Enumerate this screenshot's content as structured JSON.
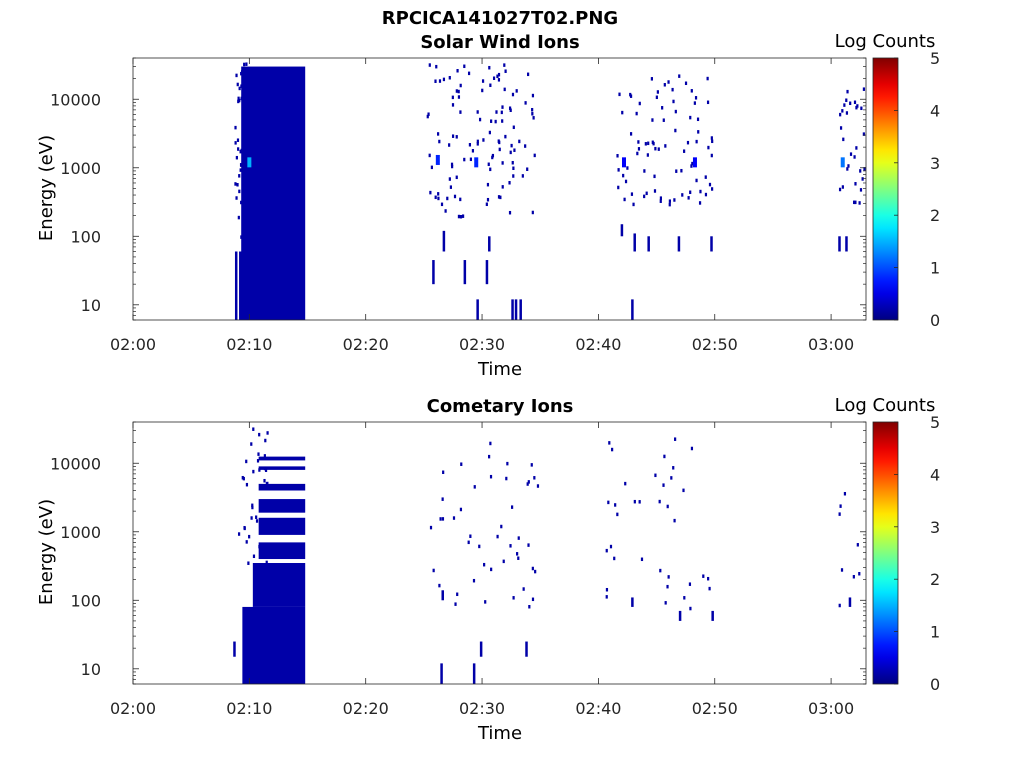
{
  "figure": {
    "title": "RPCICA141027T02.PNG"
  },
  "chart_data": [
    {
      "type": "heatmap",
      "title": "Solar Wind Ions",
      "xlabel": "Time",
      "ylabel": "Energy (eV)",
      "yscale": "log",
      "ylim": [
        6,
        40000
      ],
      "xlim": [
        "02:00",
        "03:03"
      ],
      "x_ticks": [
        "02:00",
        "02:10",
        "02:20",
        "02:30",
        "02:40",
        "02:50",
        "03:00"
      ],
      "y_ticks": [
        "10",
        "100",
        "1000",
        "10000"
      ],
      "colorbar": {
        "label": "Log Counts",
        "range": [
          0,
          5
        ],
        "ticks": [
          "0",
          "1",
          "2",
          "3",
          "4",
          "5"
        ],
        "colormap": "jet"
      },
      "blocks": [
        {
          "t0": 9.3,
          "t1": 14.8,
          "e0": 6,
          "e1": 30000,
          "level": 0.2
        }
      ],
      "hot_cells": [
        {
          "t": 10.0,
          "e": 1200,
          "level": 1.5
        },
        {
          "t": 26.2,
          "e": 1300,
          "level": 0.8
        },
        {
          "t": 29.5,
          "e": 1200,
          "level": 0.8
        },
        {
          "t": 42.2,
          "e": 1200,
          "level": 0.6
        },
        {
          "t": 48.3,
          "e": 1200,
          "level": 0.6
        },
        {
          "t": 61.0,
          "e": 1200,
          "level": 1.2
        }
      ],
      "scatter_groups": [
        {
          "t0": 8.7,
          "t1": 9.9,
          "e0": 90,
          "e1": 35000,
          "count": 60
        },
        {
          "t0": 25.0,
          "t1": 34.5,
          "e0": 200,
          "e1": 35000,
          "count": 110
        },
        {
          "t0": 41.5,
          "t1": 50.0,
          "e0": 300,
          "e1": 25000,
          "count": 80
        },
        {
          "t0": 60.5,
          "t1": 63.0,
          "e0": 300,
          "e1": 15000,
          "count": 30
        }
      ],
      "streaks": [
        {
          "t": 8.85,
          "e0": 6,
          "e1": 60
        },
        {
          "t": 9.2,
          "e0": 6,
          "e1": 60
        },
        {
          "t": 25.8,
          "e0": 20,
          "e1": 45
        },
        {
          "t": 26.7,
          "e0": 60,
          "e1": 120
        },
        {
          "t": 28.5,
          "e0": 20,
          "e1": 45
        },
        {
          "t": 29.6,
          "e0": 6,
          "e1": 12
        },
        {
          "t": 30.4,
          "e0": 20,
          "e1": 45
        },
        {
          "t": 30.6,
          "e0": 60,
          "e1": 100
        },
        {
          "t": 32.6,
          "e0": 6,
          "e1": 12
        },
        {
          "t": 32.9,
          "e0": 6,
          "e1": 12
        },
        {
          "t": 33.3,
          "e0": 6,
          "e1": 12
        },
        {
          "t": 42.0,
          "e0": 100,
          "e1": 150
        },
        {
          "t": 43.1,
          "e0": 60,
          "e1": 110
        },
        {
          "t": 44.3,
          "e0": 60,
          "e1": 100
        },
        {
          "t": 46.9,
          "e0": 60,
          "e1": 100
        },
        {
          "t": 49.7,
          "e0": 60,
          "e1": 100
        },
        {
          "t": 42.9,
          "e0": 6,
          "e1": 12
        },
        {
          "t": 60.7,
          "e0": 60,
          "e1": 100
        },
        {
          "t": 61.3,
          "e0": 60,
          "e1": 100
        }
      ]
    },
    {
      "type": "heatmap",
      "title": "Cometary Ions",
      "xlabel": "Time",
      "ylabel": "Energy (eV)",
      "yscale": "log",
      "ylim": [
        6,
        40000
      ],
      "xlim": [
        "02:00",
        "03:03"
      ],
      "x_ticks": [
        "02:00",
        "02:10",
        "02:20",
        "02:30",
        "02:40",
        "02:50",
        "03:00"
      ],
      "y_ticks": [
        "10",
        "100",
        "1000",
        "10000"
      ],
      "colorbar": {
        "label": "Log Counts",
        "range": [
          0,
          5
        ],
        "ticks": [
          "0",
          "1",
          "2",
          "3",
          "4",
          "5"
        ],
        "colormap": "jet"
      },
      "blocks": [
        {
          "t0": 9.4,
          "t1": 14.8,
          "e0": 6,
          "e1": 80,
          "level": 0.2
        },
        {
          "t0": 10.3,
          "t1": 14.8,
          "e0": 80,
          "e1": 350,
          "level": 0.2
        },
        {
          "t0": 10.8,
          "t1": 14.8,
          "e0": 400,
          "e1": 700,
          "level": 0.2
        },
        {
          "t0": 10.8,
          "t1": 14.8,
          "e0": 900,
          "e1": 1600,
          "level": 0.2
        },
        {
          "t0": 10.8,
          "t1": 14.8,
          "e0": 1900,
          "e1": 3000,
          "level": 0.2
        },
        {
          "t0": 10.8,
          "t1": 14.8,
          "e0": 4000,
          "e1": 5000,
          "level": 0.2
        },
        {
          "t0": 10.8,
          "t1": 14.8,
          "e0": 8000,
          "e1": 9000,
          "level": 0.2
        },
        {
          "t0": 10.8,
          "t1": 14.8,
          "e0": 11000,
          "e1": 12500,
          "level": 0.2
        }
      ],
      "hot_cells": [],
      "scatter_groups": [
        {
          "t0": 9.0,
          "t1": 11.5,
          "e0": 200,
          "e1": 35000,
          "count": 35
        },
        {
          "t0": 25.5,
          "t1": 35.0,
          "e0": 80,
          "e1": 25000,
          "count": 45
        },
        {
          "t0": 40.5,
          "t1": 50.5,
          "e0": 80,
          "e1": 35000,
          "count": 35
        },
        {
          "t0": 60.5,
          "t1": 62.5,
          "e0": 80,
          "e1": 6000,
          "count": 8
        }
      ],
      "streaks": [
        {
          "t": 8.7,
          "e0": 15,
          "e1": 25
        },
        {
          "t": 26.5,
          "e0": 6,
          "e1": 12
        },
        {
          "t": 29.3,
          "e0": 6,
          "e1": 12
        },
        {
          "t": 29.9,
          "e0": 15,
          "e1": 25
        },
        {
          "t": 33.8,
          "e0": 15,
          "e1": 25
        },
        {
          "t": 26.6,
          "e0": 100,
          "e1": 140
        },
        {
          "t": 42.9,
          "e0": 80,
          "e1": 110
        },
        {
          "t": 47.0,
          "e0": 50,
          "e1": 70
        },
        {
          "t": 49.8,
          "e0": 50,
          "e1": 70
        },
        {
          "t": 61.6,
          "e0": 80,
          "e1": 110
        }
      ]
    }
  ]
}
